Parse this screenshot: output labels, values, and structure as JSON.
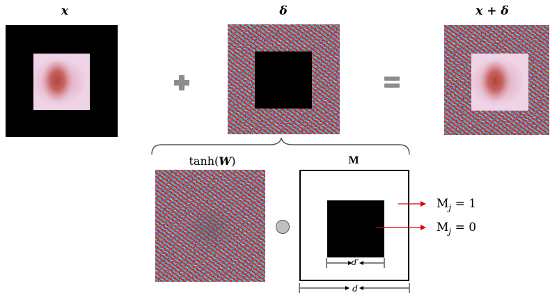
{
  "labels": {
    "x": "x",
    "delta": "δ",
    "x_plus_delta": "x + δ",
    "tanh_prefix": "tanh(",
    "tanh_var": "W",
    "tanh_suffix": ")",
    "mask": "M",
    "mask_one": "= 1",
    "mask_zero": "= 0",
    "mask_base": "M",
    "mask_sub": "j",
    "d_prime": "d′",
    "d": "d"
  },
  "colors": {
    "arrow": "#e00000",
    "operator_gray": "#8c8c8c",
    "circle_fill": "#bfbfbf"
  },
  "icons": [
    "plus-icon",
    "equals-icon",
    "hadamard-circle-icon"
  ]
}
